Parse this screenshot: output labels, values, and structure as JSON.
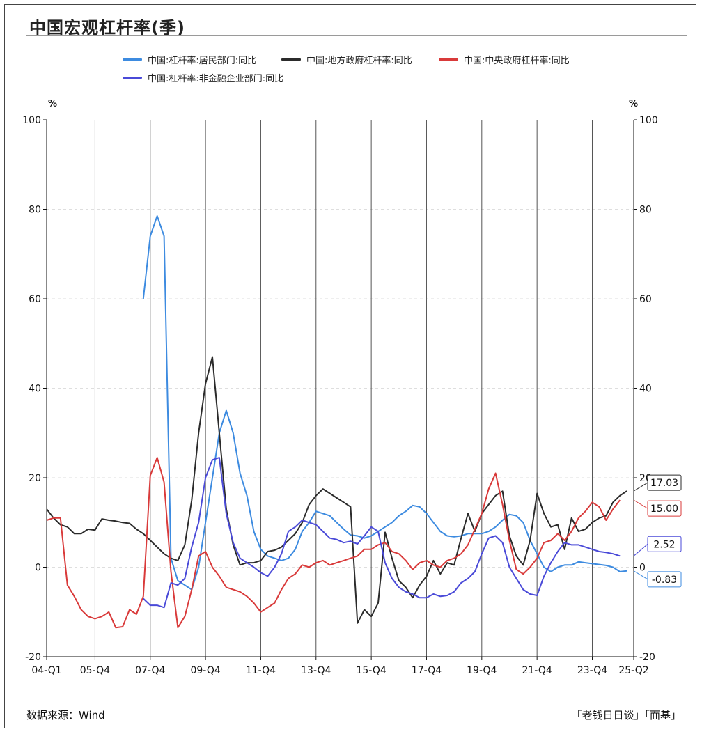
{
  "title": "中国宏观杠杆率(季)",
  "unit_left": "%",
  "unit_right": "%",
  "source": "数据来源：Wind",
  "credit": "「老钱日日谈」「面基」",
  "colors": {
    "household": "#3d8be0",
    "local_gov": "#2b2b2b",
    "central_gov": "#d93a3a",
    "nonfin_corp": "#4a4ad8"
  },
  "chart_data": {
    "type": "line",
    "title": "中国宏观杠杆率(季)",
    "xlabel": "",
    "ylabel": "%",
    "ylim": [
      -20,
      100
    ],
    "y_ticks": [
      "-20",
      "0",
      "20",
      "40",
      "60",
      "80",
      "100"
    ],
    "y_tick_values": [
      -20,
      0,
      20,
      40,
      60,
      80,
      100
    ],
    "x_tick_labels": [
      "04-Q1",
      "05-Q4",
      "07-Q4",
      "09-Q4",
      "11-Q4",
      "13-Q4",
      "15-Q4",
      "17-Q4",
      "19-Q4",
      "21-Q4",
      "23-Q4",
      "25-Q2"
    ],
    "x_tick_index": [
      0,
      7,
      15,
      23,
      31,
      39,
      47,
      55,
      63,
      71,
      79,
      85
    ],
    "x_count": 86,
    "legend": [
      "中国:杠杆率:居民部门:同比",
      "中国:地方政府杠杆率:同比",
      "中国:中央政府杠杆率:同比",
      "中国:杠杆率:非金融企业部门:同比"
    ],
    "series": [
      {
        "name": "中国:杠杆率:居民部门:同比",
        "key": "household",
        "start": 14,
        "values": [
          60,
          74,
          78.5,
          74,
          2,
          -3,
          -4,
          -5,
          0,
          10,
          20,
          30,
          35,
          30,
          21,
          16,
          8,
          4,
          2.5,
          2,
          1.5,
          2,
          4,
          8,
          10,
          12.5,
          12,
          11.5,
          10,
          8.5,
          7.2,
          7,
          6.5,
          7,
          8,
          9,
          10,
          11.5,
          12.5,
          13.8,
          13.5,
          12,
          10,
          8,
          7,
          6.8,
          7,
          7.5,
          7.5,
          7.5,
          8,
          9,
          10.5,
          11.8,
          11.5,
          10,
          6,
          3,
          0,
          -1,
          0,
          0.5,
          0.5,
          1.2,
          1,
          0.8,
          0.6,
          0.4,
          0,
          -1,
          -0.83
        ]
      },
      {
        "name": "中国:地方政府杠杆率:同比",
        "key": "local_gov",
        "start": 0,
        "values": [
          13,
          11,
          9.5,
          9,
          7.5,
          7.5,
          8.5,
          8.3,
          10.8,
          10.5,
          10.3,
          10,
          9.8,
          8.5,
          7.5,
          6,
          4.5,
          3,
          2,
          1.5,
          5,
          15,
          30,
          41,
          47,
          30,
          13,
          5,
          0.5,
          1,
          1,
          1.5,
          3.5,
          3.8,
          4.5,
          6,
          7.5,
          10,
          14,
          16,
          17.5,
          16.5,
          15.5,
          14.5,
          13.5,
          -12.5,
          -9.5,
          -11,
          -8,
          7.8,
          2,
          -3,
          -4.5,
          -6.8,
          -4,
          -2,
          1.5,
          -1.5,
          1,
          0.5,
          6.5,
          12,
          8,
          12,
          14,
          16,
          17,
          7,
          2.5,
          0.5,
          6,
          16.5,
          12,
          9,
          9.5,
          4,
          11,
          8,
          8.5,
          10,
          11,
          11.5,
          14.5,
          16,
          17.03
        ]
      },
      {
        "name": "中国:中央政府杠杆率:同比",
        "key": "central_gov",
        "start": 0,
        "values": [
          10.5,
          11,
          11,
          -4,
          -6.5,
          -9.5,
          -11,
          -11.5,
          -11,
          -10,
          -13.5,
          -13.3,
          -9.5,
          -10.5,
          -6.5,
          20.5,
          24.5,
          19,
          -1,
          -13.5,
          -11,
          -5,
          2.5,
          3.5,
          0,
          -2,
          -4.5,
          -5,
          -5.5,
          -6.5,
          -8,
          -10,
          -9,
          -8,
          -5,
          -2.5,
          -1.5,
          0.5,
          0,
          1,
          1.5,
          0.5,
          1,
          1.5,
          2,
          2.5,
          4,
          4,
          5,
          5.5,
          3.5,
          3,
          1.5,
          -0.5,
          1,
          1.5,
          0.5,
          0,
          1.5,
          2,
          3,
          5,
          8.5,
          12,
          17.5,
          21,
          14,
          6,
          -0.5,
          -1.5,
          0,
          2,
          5.5,
          6,
          7.5,
          6,
          8,
          11,
          12.5,
          14.5,
          13.5,
          10.5,
          13,
          15
        ]
      },
      {
        "name": "中国:杠杆率:非金融企业部门:同比",
        "key": "nonfin_corp",
        "start": 14,
        "values": [
          -7,
          -8.5,
          -8.5,
          -9,
          -3.5,
          -4,
          -2.5,
          4.5,
          10,
          20,
          24,
          24.5,
          12,
          5.5,
          2,
          1,
          0,
          -1.2,
          -2,
          0,
          3,
          8,
          9,
          10.5,
          10,
          9.5,
          8,
          6.5,
          6.2,
          5.5,
          5.8,
          5.2,
          7,
          9,
          8,
          1,
          -2.5,
          -4.5,
          -5.5,
          -6,
          -6.8,
          -6.8,
          -6,
          -6.5,
          -6.3,
          -5.5,
          -3.5,
          -2.5,
          -1,
          3,
          6.5,
          7,
          5.5,
          0,
          -2.5,
          -5,
          -6,
          -6.3,
          -2,
          1,
          3.5,
          5.5,
          5,
          5,
          4.5,
          4,
          3.5,
          3.3,
          3,
          2.52
        ]
      }
    ],
    "end_labels": [
      {
        "key": "local_gov",
        "text": "17.03",
        "value": 17.03
      },
      {
        "key": "central_gov",
        "text": "15.00",
        "value": 15.0
      },
      {
        "key": "nonfin_corp",
        "text": "2.52",
        "value": 2.52
      },
      {
        "key": "household",
        "text": "-0.83",
        "value": -0.83
      }
    ]
  }
}
